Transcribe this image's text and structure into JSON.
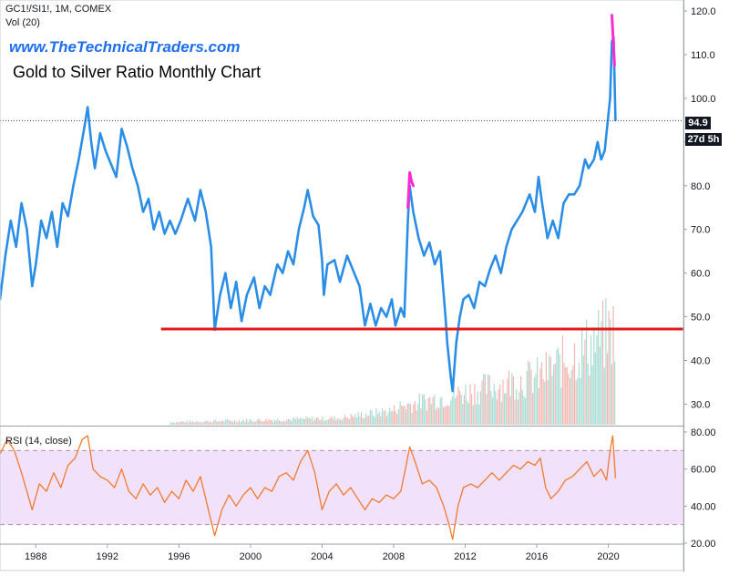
{
  "header": {
    "symbol": "GC1!/SI1!, 1M, COMEX",
    "volume": "Vol (20)",
    "website": "www.TheTechnicalTraders.com",
    "title": "Gold to Silver Ratio Monthly Chart"
  },
  "badges": {
    "last_price": "94.9",
    "countdown": "27d 5h"
  },
  "rsi_panel": {
    "label": "RSI (14, close)",
    "upper_band": 70,
    "lower_band": 30
  },
  "colors": {
    "price_line": "#2b8ee6",
    "rsi_line": "#f07b2e",
    "support_line": "#e01b1b",
    "highlight": "#ff2ad4",
    "rsi_band_fill": "#f1e1fb",
    "volume_up": "#a8dcd4",
    "volume_down": "#f2b7b2"
  },
  "chart_data": [
    {
      "type": "line",
      "title": "",
      "x_ticks": [
        "1988",
        "1992",
        "1996",
        "2000",
        "2004",
        "2008",
        "2012",
        "2016",
        "2020"
      ],
      "x_tick_values": [
        1988,
        1992,
        1996,
        2000,
        2004,
        2008,
        2012,
        2016,
        2020
      ],
      "xlim": [
        1986,
        2024.2
      ],
      "ylim": [
        25.3,
        122.5
      ],
      "y_ticks": [
        30,
        40,
        50,
        60,
        70,
        80,
        90,
        100,
        110,
        120
      ],
      "y_tick_labels": [
        "30.0",
        "40.0",
        "50.0",
        "60.0",
        "70.0",
        "80.0",
        "90.0",
        "100.0",
        "110.0",
        "120.0"
      ],
      "series": [
        {
          "points": [
            [
              1986.0,
              54
            ],
            [
              1986.3,
              64
            ],
            [
              1986.6,
              72
            ],
            [
              1986.9,
              66
            ],
            [
              1987.2,
              76
            ],
            [
              1987.5,
              70
            ],
            [
              1987.8,
              57
            ],
            [
              1988.0,
              62
            ],
            [
              1988.3,
              72
            ],
            [
              1988.6,
              68
            ],
            [
              1988.9,
              74
            ],
            [
              1989.2,
              66
            ],
            [
              1989.5,
              76
            ],
            [
              1989.8,
              73
            ],
            [
              1990.1,
              80
            ],
            [
              1990.4,
              86
            ],
            [
              1990.7,
              93
            ],
            [
              1990.9,
              98
            ],
            [
              1991.1,
              90
            ],
            [
              1991.3,
              84
            ],
            [
              1991.6,
              92
            ],
            [
              1991.9,
              88
            ],
            [
              1992.2,
              85
            ],
            [
              1992.5,
              82
            ],
            [
              1992.8,
              93
            ],
            [
              1993.1,
              89
            ],
            [
              1993.4,
              84
            ],
            [
              1993.7,
              80
            ],
            [
              1994.0,
              74
            ],
            [
              1994.3,
              77
            ],
            [
              1994.6,
              70
            ],
            [
              1994.9,
              74
            ],
            [
              1995.2,
              69
            ],
            [
              1995.5,
              72
            ],
            [
              1995.8,
              69
            ],
            [
              1996.1,
              72
            ],
            [
              1996.5,
              77
            ],
            [
              1996.9,
              72
            ],
            [
              1997.2,
              79
            ],
            [
              1997.5,
              74
            ],
            [
              1997.8,
              66
            ],
            [
              1998.0,
              47
            ],
            [
              1998.3,
              55
            ],
            [
              1998.6,
              60
            ],
            [
              1998.9,
              52
            ],
            [
              1999.2,
              58
            ],
            [
              1999.5,
              49
            ],
            [
              1999.8,
              55
            ],
            [
              2000.2,
              59
            ],
            [
              2000.5,
              52
            ],
            [
              2000.8,
              57
            ],
            [
              2001.1,
              55
            ],
            [
              2001.5,
              62
            ],
            [
              2001.8,
              60
            ],
            [
              2002.1,
              65
            ],
            [
              2002.4,
              62
            ],
            [
              2002.7,
              70
            ],
            [
              2003.0,
              75
            ],
            [
              2003.2,
              79
            ],
            [
              2003.5,
              73
            ],
            [
              2003.8,
              71
            ],
            [
              2004.0,
              63
            ],
            [
              2004.1,
              55
            ],
            [
              2004.3,
              62
            ],
            [
              2004.7,
              63
            ],
            [
              2005.0,
              58
            ],
            [
              2005.4,
              64
            ],
            [
              2005.8,
              60
            ],
            [
              2006.1,
              57
            ],
            [
              2006.4,
              48
            ],
            [
              2006.7,
              53
            ],
            [
              2007.0,
              48
            ],
            [
              2007.3,
              52
            ],
            [
              2007.6,
              50
            ],
            [
              2007.9,
              54
            ],
            [
              2008.1,
              48
            ],
            [
              2008.4,
              52
            ],
            [
              2008.6,
              50
            ],
            [
              2008.8,
              72
            ],
            [
              2008.9,
              80
            ],
            [
              2009.1,
              74
            ],
            [
              2009.4,
              68
            ],
            [
              2009.7,
              64
            ],
            [
              2010.0,
              67
            ],
            [
              2010.3,
              62
            ],
            [
              2010.6,
              65
            ],
            [
              2010.9,
              50
            ],
            [
              2011.0,
              44
            ],
            [
              2011.2,
              36
            ],
            [
              2011.3,
              33
            ],
            [
              2011.5,
              44
            ],
            [
              2011.7,
              50
            ],
            [
              2011.9,
              54
            ],
            [
              2012.2,
              55
            ],
            [
              2012.5,
              52
            ],
            [
              2012.8,
              58
            ],
            [
              2013.1,
              57
            ],
            [
              2013.4,
              61
            ],
            [
              2013.7,
              64
            ],
            [
              2014.0,
              60
            ],
            [
              2014.3,
              66
            ],
            [
              2014.6,
              70
            ],
            [
              2014.9,
              72
            ],
            [
              2015.2,
              74
            ],
            [
              2015.6,
              78
            ],
            [
              2015.9,
              74
            ],
            [
              2016.1,
              82
            ],
            [
              2016.3,
              76
            ],
            [
              2016.6,
              68
            ],
            [
              2016.9,
              72
            ],
            [
              2017.2,
              68
            ],
            [
              2017.5,
              76
            ],
            [
              2017.8,
              78
            ],
            [
              2018.1,
              78
            ],
            [
              2018.4,
              80
            ],
            [
              2018.7,
              86
            ],
            [
              2018.9,
              84
            ],
            [
              2019.2,
              86
            ],
            [
              2019.4,
              90
            ],
            [
              2019.6,
              86
            ],
            [
              2019.8,
              88
            ],
            [
              2020.1,
              100
            ],
            [
              2020.2,
              113
            ],
            [
              2020.3,
              114
            ],
            [
              2020.4,
              95
            ]
          ]
        }
      ],
      "support_level": {
        "value": 47.2,
        "from": 1995.0,
        "to": 2024.2
      },
      "highlight_2008": [
        [
          2008.8,
          75
        ],
        [
          2008.9,
          83
        ],
        [
          2009.0,
          81
        ],
        [
          2009.1,
          80
        ]
      ],
      "highlight_2020": [
        [
          2020.2,
          119
        ],
        [
          2020.35,
          107.6
        ]
      ],
      "last_price_line": 94.9
    },
    {
      "type": "line",
      "title": "",
      "xlim": [
        1986,
        2024.2
      ],
      "ylim": [
        20,
        80
      ],
      "y_ticks": [
        20,
        40,
        60,
        80
      ],
      "y_tick_labels": [
        "20.00",
        "40.00",
        "60.00",
        "80.00"
      ],
      "bands": [
        30,
        70
      ],
      "series": [
        {
          "points": [
            [
              1986.0,
              68
            ],
            [
              1986.4,
              76
            ],
            [
              1986.8,
              70
            ],
            [
              1987.2,
              58
            ],
            [
              1987.5,
              48
            ],
            [
              1987.8,
              38
            ],
            [
              1988.2,
              52
            ],
            [
              1988.6,
              48
            ],
            [
              1989.0,
              58
            ],
            [
              1989.4,
              50
            ],
            [
              1989.8,
              62
            ],
            [
              1990.2,
              66
            ],
            [
              1990.6,
              76
            ],
            [
              1990.9,
              78
            ],
            [
              1991.2,
              60
            ],
            [
              1991.6,
              56
            ],
            [
              1992.0,
              54
            ],
            [
              1992.4,
              50
            ],
            [
              1992.8,
              60
            ],
            [
              1993.2,
              48
            ],
            [
              1993.6,
              44
            ],
            [
              1994.0,
              52
            ],
            [
              1994.4,
              46
            ],
            [
              1994.8,
              50
            ],
            [
              1995.2,
              42
            ],
            [
              1995.6,
              48
            ],
            [
              1996.0,
              44
            ],
            [
              1996.4,
              54
            ],
            [
              1996.8,
              48
            ],
            [
              1997.2,
              56
            ],
            [
              1997.6,
              40
            ],
            [
              1998.0,
              24
            ],
            [
              1998.4,
              38
            ],
            [
              1998.8,
              46
            ],
            [
              1999.2,
              40
            ],
            [
              1999.6,
              46
            ],
            [
              2000.0,
              50
            ],
            [
              2000.4,
              44
            ],
            [
              2000.8,
              50
            ],
            [
              2001.2,
              48
            ],
            [
              2001.6,
              56
            ],
            [
              2002.0,
              58
            ],
            [
              2002.4,
              54
            ],
            [
              2002.8,
              64
            ],
            [
              2003.2,
              70
            ],
            [
              2003.6,
              58
            ],
            [
              2004.0,
              38
            ],
            [
              2004.4,
              48
            ],
            [
              2004.8,
              52
            ],
            [
              2005.2,
              46
            ],
            [
              2005.6,
              50
            ],
            [
              2006.0,
              44
            ],
            [
              2006.4,
              38
            ],
            [
              2006.8,
              44
            ],
            [
              2007.2,
              42
            ],
            [
              2007.6,
              46
            ],
            [
              2008.0,
              44
            ],
            [
              2008.4,
              48
            ],
            [
              2008.7,
              62
            ],
            [
              2008.9,
              72
            ],
            [
              2009.2,
              64
            ],
            [
              2009.6,
              52
            ],
            [
              2010.0,
              54
            ],
            [
              2010.4,
              50
            ],
            [
              2010.8,
              40
            ],
            [
              2011.1,
              30
            ],
            [
              2011.3,
              22
            ],
            [
              2011.6,
              40
            ],
            [
              2011.9,
              50
            ],
            [
              2012.3,
              52
            ],
            [
              2012.7,
              50
            ],
            [
              2013.1,
              54
            ],
            [
              2013.5,
              58
            ],
            [
              2013.9,
              54
            ],
            [
              2014.3,
              58
            ],
            [
              2014.7,
              62
            ],
            [
              2015.1,
              60
            ],
            [
              2015.5,
              64
            ],
            [
              2015.9,
              62
            ],
            [
              2016.2,
              66
            ],
            [
              2016.5,
              50
            ],
            [
              2016.8,
              44
            ],
            [
              2017.2,
              48
            ],
            [
              2017.6,
              54
            ],
            [
              2018.0,
              56
            ],
            [
              2018.4,
              60
            ],
            [
              2018.8,
              64
            ],
            [
              2019.2,
              56
            ],
            [
              2019.6,
              60
            ],
            [
              2019.9,
              54
            ],
            [
              2020.1,
              70
            ],
            [
              2020.25,
              78
            ],
            [
              2020.4,
              55
            ]
          ]
        }
      ]
    }
  ]
}
